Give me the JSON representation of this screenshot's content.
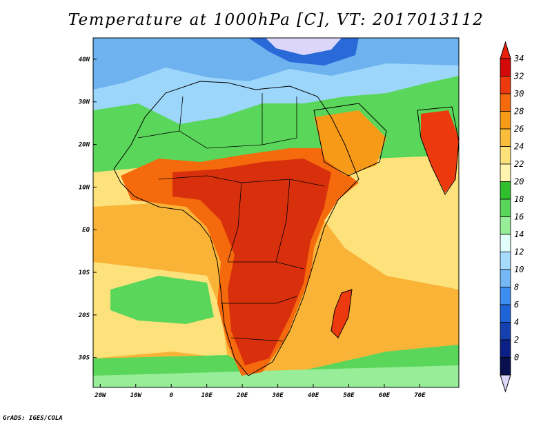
{
  "title": "Temperature at 1000hPa [C], VT: 2017013112",
  "footer": "GrADS: IGES/COLA",
  "map": {
    "lon_range": [
      -22,
      81
    ],
    "lat_range": [
      -37,
      45
    ],
    "x_ticks": [
      "20W",
      "10W",
      "0",
      "10E",
      "20E",
      "30E",
      "40E",
      "50E",
      "60E",
      "70E"
    ],
    "x_tick_values": [
      -20,
      -10,
      0,
      10,
      20,
      30,
      40,
      50,
      60,
      70
    ],
    "y_ticks": [
      "40N",
      "30N",
      "20N",
      "10N",
      "EQ",
      "10S",
      "20S",
      "30S"
    ],
    "y_tick_values": [
      40,
      30,
      20,
      10,
      0,
      -10,
      -20,
      -30
    ]
  },
  "colorbar": {
    "labels": [
      "34",
      "32",
      "30",
      "28",
      "26",
      "24",
      "22",
      "20",
      "18",
      "16",
      "14",
      "12",
      "10",
      "8",
      "6",
      "4",
      "2",
      "0"
    ],
    "colors": [
      "#d40a0a",
      "#ec3a0e",
      "#f46a0c",
      "#f79a18",
      "#fbbe3c",
      "#fde27c",
      "#fff5b0",
      "#2fbf2f",
      "#5ad65a",
      "#98ee98",
      "#e0fffa",
      "#a8dcfc",
      "#74b8f6",
      "#3c8ef0",
      "#1e64d8",
      "#1440b0",
      "#0c2086",
      "#08104e"
    ],
    "top_color": "#e8200c",
    "bottom_color": "#ddd8fa"
  }
}
